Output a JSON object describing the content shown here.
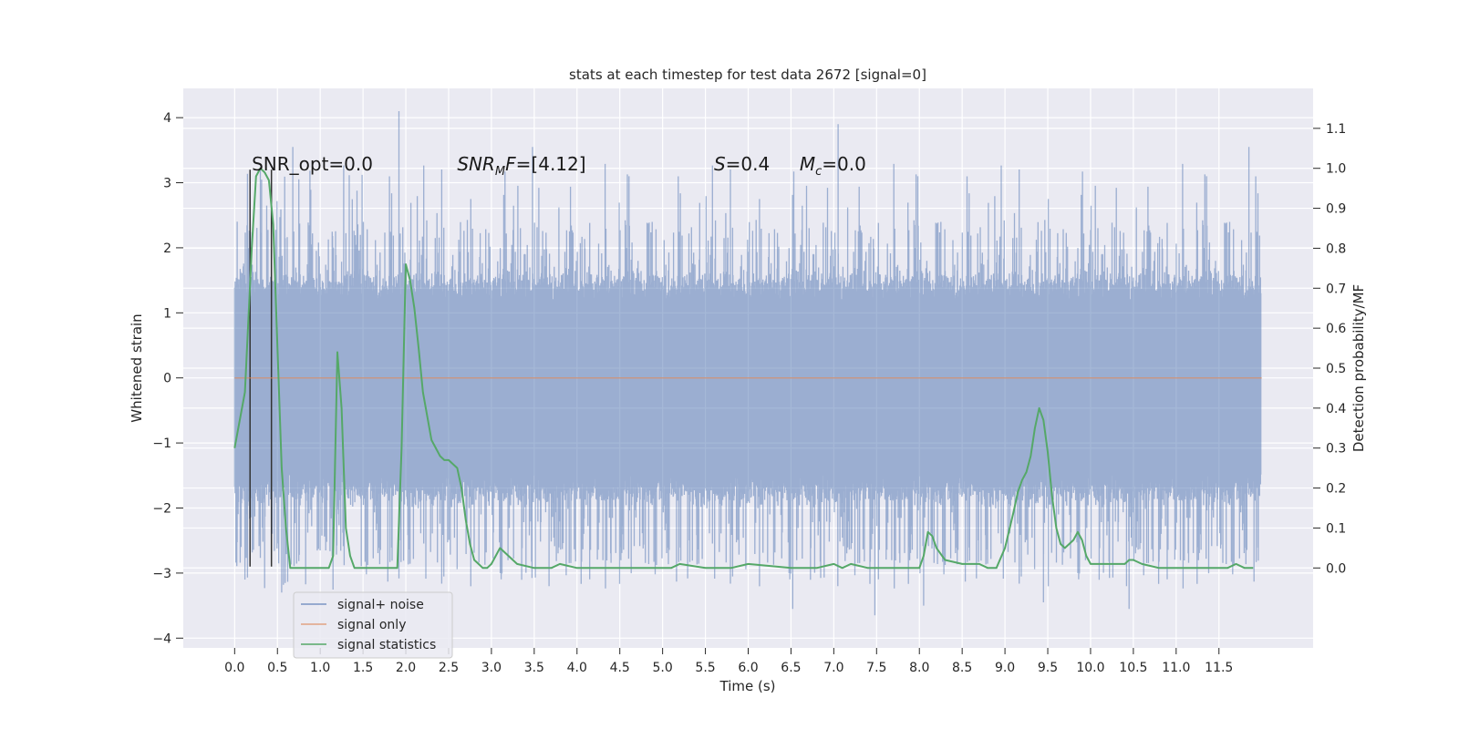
{
  "chart_data": {
    "type": "line",
    "title": "stats at each timestep for test data 2672 [signal=0]",
    "xlabel": "Time (s)",
    "ylabel_left": "Whitened strain",
    "ylabel_right": "Detection probability/MF",
    "xlim": [
      -0.6,
      12.6
    ],
    "ylim_left": [
      -4.15,
      4.45
    ],
    "ylim_right": [
      -0.2,
      1.2
    ],
    "grid": true,
    "legend_position": "lower-left",
    "x_ticks": [
      0.0,
      0.5,
      1.0,
      1.5,
      2.0,
      2.5,
      3.0,
      3.5,
      4.0,
      4.5,
      5.0,
      5.5,
      6.0,
      6.5,
      7.0,
      7.5,
      8.0,
      8.5,
      9.0,
      9.5,
      10.0,
      10.5,
      11.0,
      11.5
    ],
    "x_tick_labels": [
      "0.0",
      "0.5",
      "1.0",
      "1.5",
      "2.0",
      "2.5",
      "3.0",
      "3.5",
      "4.0",
      "4.5",
      "5.0",
      "5.5",
      "6.0",
      "6.5",
      "7.0",
      "7.5",
      "8.0",
      "8.5",
      "9.0",
      "9.5",
      "10.0",
      "10.5",
      "11.0",
      "11.5"
    ],
    "y_left_ticks": [
      -4,
      -3,
      -2,
      -1,
      0,
      1,
      2,
      3,
      4
    ],
    "y_left_tick_labels": [
      "−4",
      "−3",
      "−2",
      "−1",
      "0",
      "1",
      "2",
      "3",
      "4"
    ],
    "y_right_ticks": [
      0.0,
      0.1,
      0.2,
      0.3,
      0.4,
      0.5,
      0.6,
      0.7,
      0.8,
      0.9,
      1.0,
      1.1
    ],
    "y_right_tick_labels": [
      "0.0",
      "0.1",
      "0.2",
      "0.3",
      "0.4",
      "0.5",
      "0.6",
      "0.7",
      "0.8",
      "0.9",
      "1.0",
      "1.1"
    ],
    "annotations": {
      "snr_opt": "SNR_opt=0.0",
      "snr_mf_italic": "SNR",
      "snr_mf_sub": "M",
      "snr_mf_rest_italic": "F",
      "snr_mf_value": "=[4.12]",
      "s_italic": "S",
      "s_value": "=0.4",
      "mc_italic": "M",
      "mc_sub": "c",
      "mc_value": "=0.0"
    },
    "annotation_positions": [
      {
        "key": "snr_opt",
        "x": 0.2,
        "y_right": 0.995
      },
      {
        "key": "snr_mf",
        "x": 2.6,
        "y_right": 0.995
      },
      {
        "key": "s",
        "x": 5.6,
        "y_right": 0.995
      },
      {
        "key": "mc",
        "x": 6.6,
        "y_right": 0.995
      }
    ],
    "vertical_markers": {
      "x": [
        0.18,
        0.43
      ],
      "y_range_left": [
        -2.9,
        3.2
      ],
      "color": "#333333"
    },
    "series": [
      {
        "name": "signal+ noise",
        "color": "#4c72b0",
        "alpha": 0.5,
        "axis": "left",
        "t_range": [
          0.0,
          11.99
        ],
        "core_envelope": [
          -1.7,
          1.4
        ],
        "spike_max_up": 4.1,
        "spike_max_down": -3.65,
        "notable_spikes": [
          {
            "x": 1.92,
            "y": 4.1
          },
          {
            "x": 7.05,
            "y": 3.9
          },
          {
            "x": 0.68,
            "y": 3.55
          },
          {
            "x": 3.48,
            "y": 3.55
          },
          {
            "x": 11.85,
            "y": 3.55
          },
          {
            "x": 7.48,
            "y": -3.65
          },
          {
            "x": 6.52,
            "y": -3.55
          },
          {
            "x": 10.45,
            "y": -3.55
          },
          {
            "x": 0.55,
            "y": -3.3
          },
          {
            "x": 8.05,
            "y": -3.5
          },
          {
            "x": 9.45,
            "y": -3.45
          },
          {
            "x": 0.12,
            "y": -3.1
          }
        ]
      },
      {
        "name": "signal only",
        "color": "#dd8452",
        "alpha": 0.6,
        "axis": "left",
        "x": [
          0.0,
          12.0
        ],
        "y": [
          0.0,
          0.0
        ]
      },
      {
        "name": "signal statistics",
        "color": "#55a868",
        "axis": "right",
        "x": [
          0.0,
          0.12,
          0.2,
          0.25,
          0.3,
          0.35,
          0.4,
          0.45,
          0.5,
          0.55,
          0.6,
          0.65,
          0.7,
          0.8,
          1.0,
          1.1,
          1.15,
          1.2,
          1.25,
          1.3,
          1.35,
          1.4,
          1.5,
          1.6,
          1.8,
          1.9,
          1.95,
          2.0,
          2.05,
          2.1,
          2.15,
          2.2,
          2.3,
          2.4,
          2.45,
          2.5,
          2.6,
          2.65,
          2.7,
          2.75,
          2.8,
          2.85,
          2.9,
          2.95,
          3.0,
          3.05,
          3.1,
          3.15,
          3.2,
          3.3,
          3.5,
          3.7,
          3.8,
          4.0,
          4.5,
          5.0,
          5.1,
          5.2,
          5.5,
          5.8,
          6.0,
          6.5,
          6.8,
          7.0,
          7.1,
          7.2,
          7.4,
          7.6,
          7.9,
          8.0,
          8.05,
          8.1,
          8.15,
          8.2,
          8.3,
          8.5,
          8.7,
          8.8,
          8.9,
          9.0,
          9.1,
          9.15,
          9.2,
          9.25,
          9.3,
          9.35,
          9.4,
          9.45,
          9.5,
          9.55,
          9.6,
          9.65,
          9.7,
          9.75,
          9.8,
          9.85,
          9.9,
          9.95,
          10.0,
          10.1,
          10.3,
          10.4,
          10.45,
          10.5,
          10.6,
          10.8,
          10.9,
          11.0,
          11.1,
          11.3,
          11.5,
          11.6,
          11.7,
          11.8,
          11.9
        ],
        "y": [
          0.3,
          0.44,
          0.8,
          0.98,
          1.0,
          0.99,
          0.97,
          0.86,
          0.55,
          0.25,
          0.1,
          0.0,
          0.0,
          0.0,
          0.0,
          0.0,
          0.03,
          0.54,
          0.4,
          0.1,
          0.03,
          0.0,
          0.0,
          0.0,
          0.0,
          0.0,
          0.3,
          0.76,
          0.72,
          0.65,
          0.55,
          0.44,
          0.32,
          0.28,
          0.27,
          0.27,
          0.25,
          0.2,
          0.12,
          0.06,
          0.02,
          0.01,
          0.0,
          0.0,
          0.01,
          0.03,
          0.05,
          0.04,
          0.03,
          0.01,
          0.0,
          0.0,
          0.01,
          0.0,
          0.0,
          0.0,
          0.0,
          0.01,
          0.0,
          0.0,
          0.01,
          0.0,
          0.0,
          0.01,
          0.0,
          0.01,
          0.0,
          0.0,
          0.0,
          0.0,
          0.03,
          0.09,
          0.08,
          0.05,
          0.02,
          0.01,
          0.01,
          0.0,
          0.0,
          0.05,
          0.14,
          0.19,
          0.22,
          0.24,
          0.28,
          0.35,
          0.4,
          0.37,
          0.29,
          0.18,
          0.1,
          0.06,
          0.05,
          0.06,
          0.07,
          0.09,
          0.07,
          0.03,
          0.01,
          0.01,
          0.01,
          0.01,
          0.02,
          0.02,
          0.01,
          0.0,
          0.0,
          0.0,
          0.0,
          0.0,
          0.0,
          0.0,
          0.01,
          0.0,
          0.0
        ]
      }
    ]
  },
  "colors": {
    "plot_background": "#eaeaf2",
    "grid": "#ffffff",
    "text": "#262626"
  }
}
